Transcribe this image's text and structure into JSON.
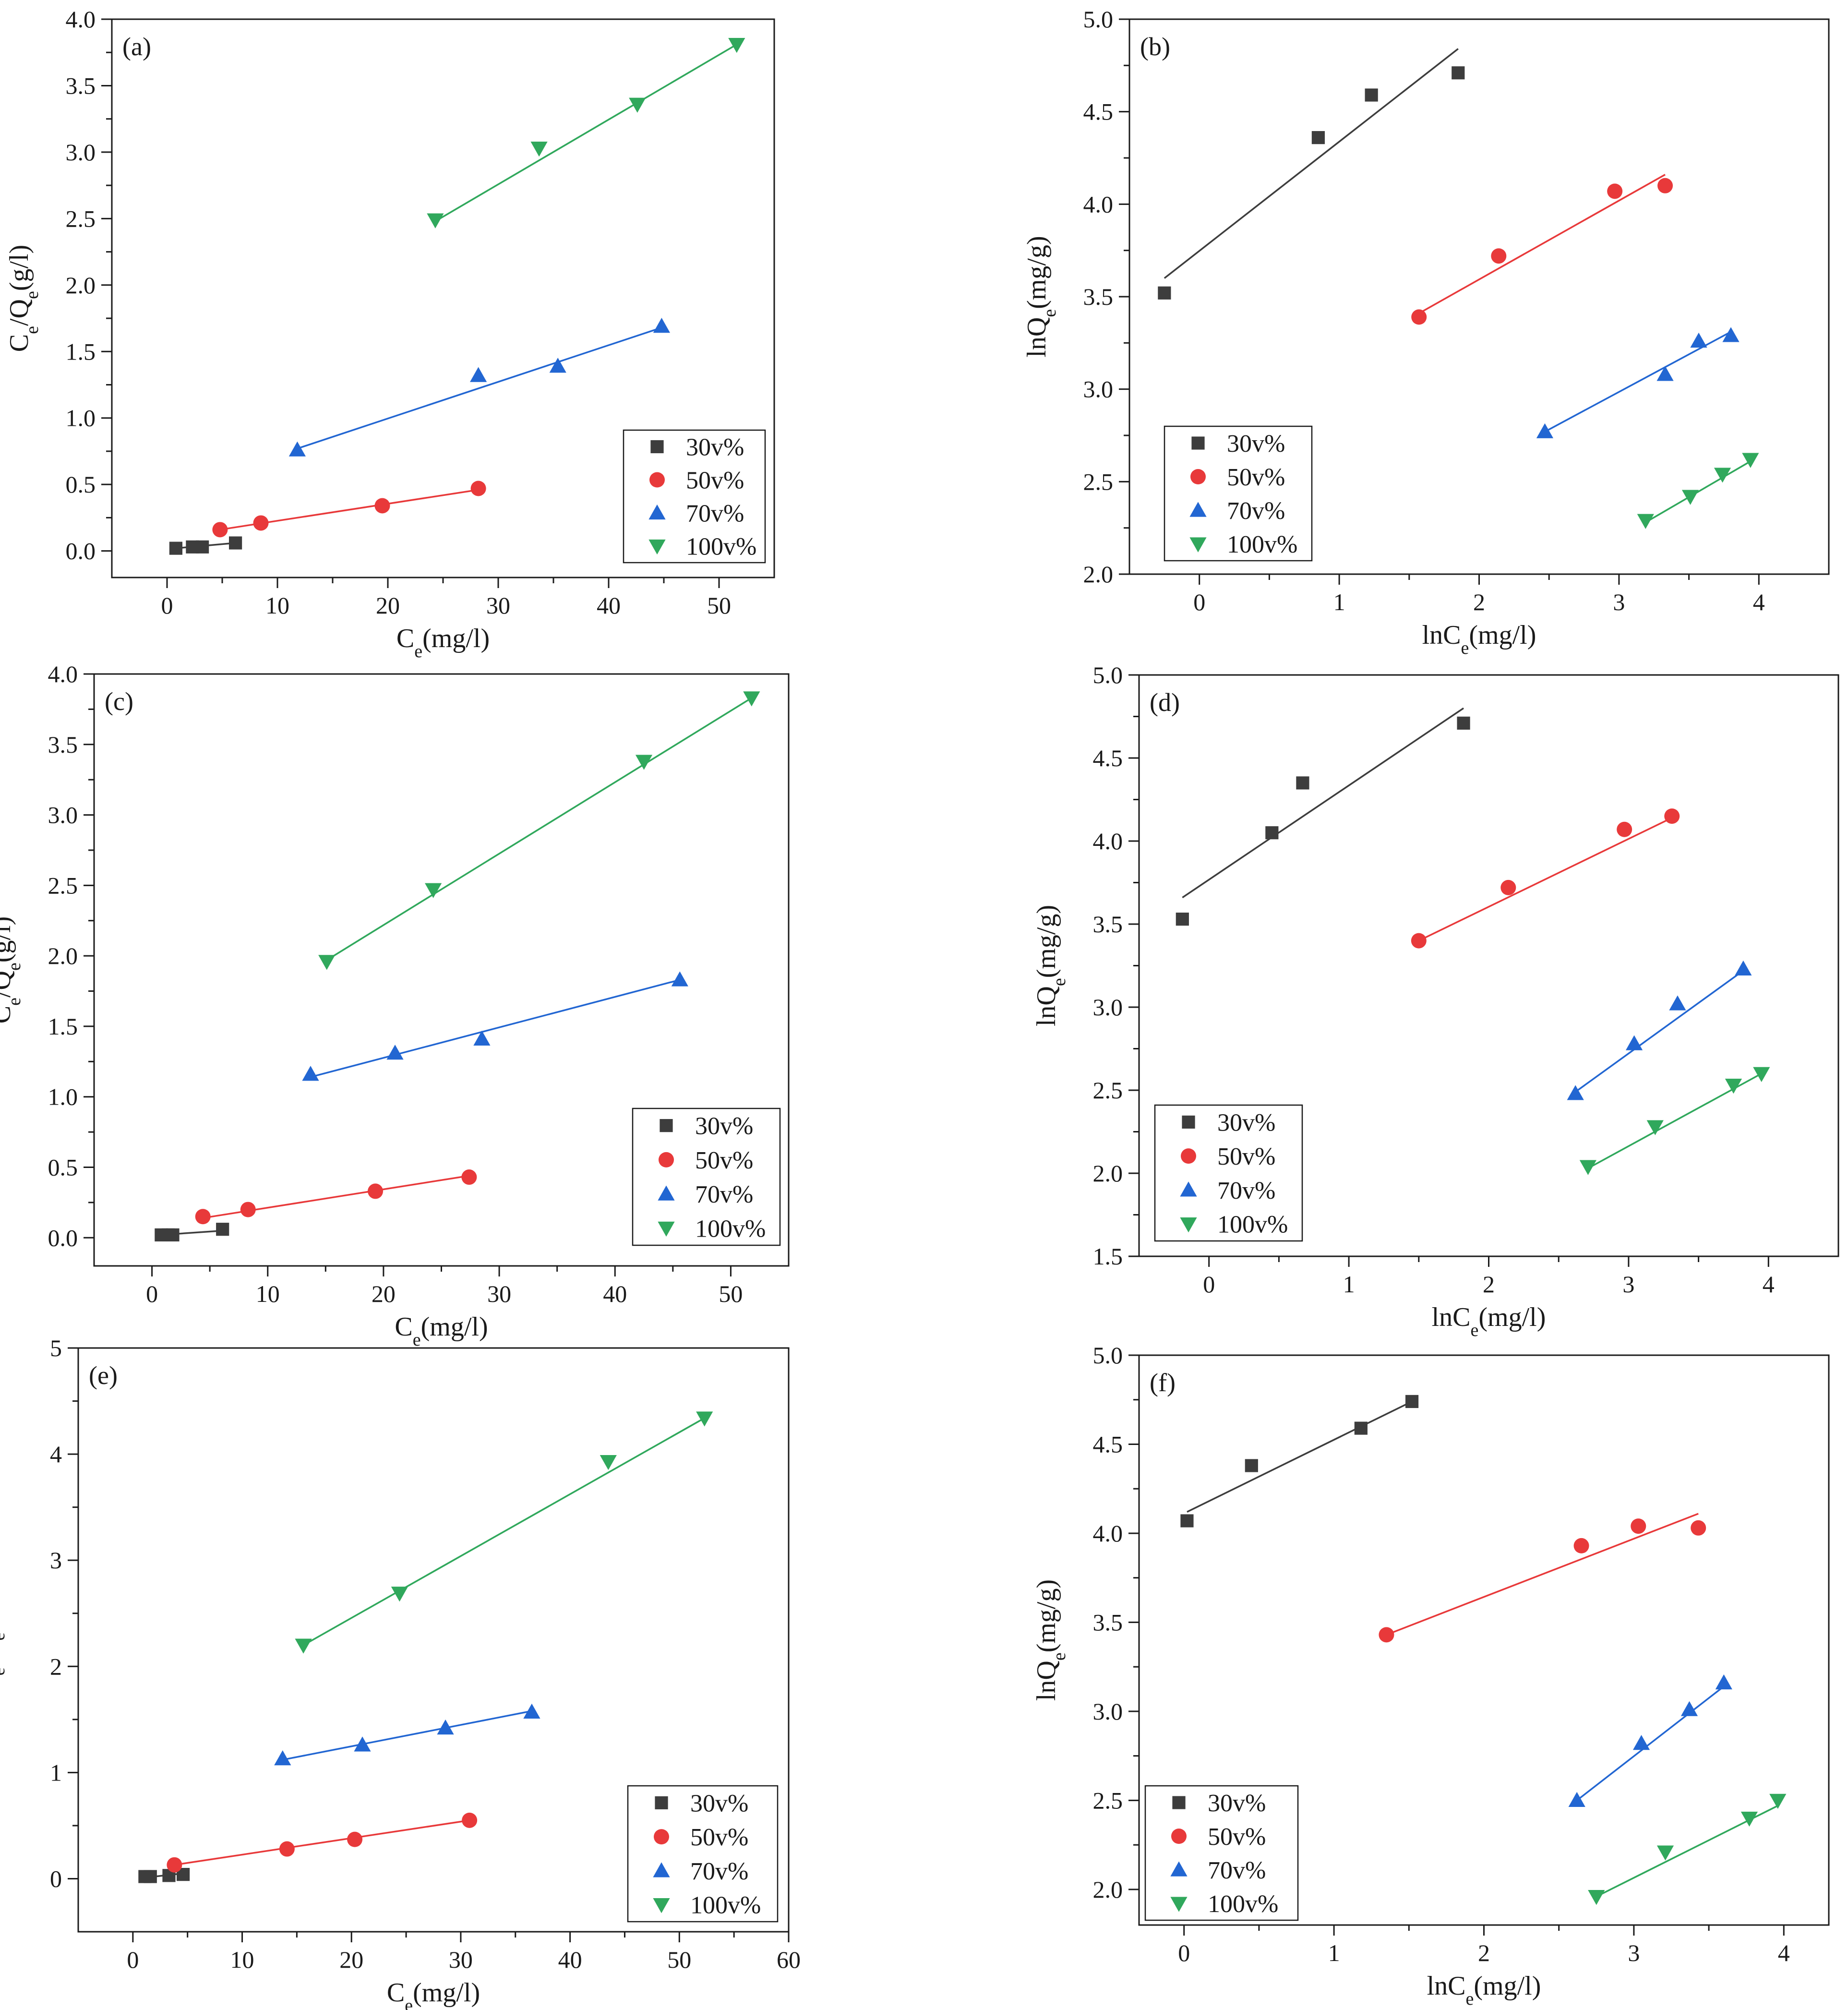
{
  "colors": {
    "30v%": "#3d3d3d",
    "50v%": "#e8393a",
    "70v%": "#2266d2",
    "100v%": "#30a85c"
  },
  "chart_data": [
    {
      "type": "scatter",
      "panel": "(a)",
      "xlabel": "Ce(mg/l)",
      "ylabel": "Ce/Qe(g/l)",
      "xlim": [
        -5,
        55
      ],
      "ylim": [
        -0.2,
        4.0
      ],
      "xticks": [
        0,
        10,
        20,
        30,
        40,
        50
      ],
      "yticks": [
        0.0,
        0.5,
        1.0,
        1.5,
        2.0,
        2.5,
        3.0,
        3.5,
        4.0
      ],
      "xtick_labels": [
        "0",
        "10",
        "20",
        "30",
        "40",
        "50"
      ],
      "ytick_labels": [
        "0.0",
        "0.5",
        "1.0",
        "1.5",
        "2.0",
        "2.5",
        "3.0",
        "3.5",
        "4.0"
      ],
      "legend_position": "bottom-right",
      "series": [
        {
          "name": "30v%",
          "marker": "square",
          "x": [
            0.8,
            2.3,
            3.2,
            6.2
          ],
          "y": [
            0.02,
            0.03,
            0.03,
            0.06
          ],
          "fit": [
            [
              0.8,
              0.02
            ],
            [
              6.2,
              0.06
            ]
          ]
        },
        {
          "name": "50v%",
          "marker": "circle",
          "x": [
            4.8,
            8.5,
            19.5,
            28.2
          ],
          "y": [
            0.16,
            0.21,
            0.34,
            0.47
          ],
          "fit": [
            [
              4.8,
              0.16
            ],
            [
              28.2,
              0.46
            ]
          ]
        },
        {
          "name": "70v%",
          "marker": "triangle-up",
          "x": [
            11.8,
            28.2,
            35.4,
            44.8
          ],
          "y": [
            0.76,
            1.32,
            1.39,
            1.69
          ],
          "fit": [
            [
              11.8,
              0.77
            ],
            [
              44.8,
              1.68
            ]
          ]
        },
        {
          "name": "100v%",
          "marker": "triangle-down",
          "x": [
            24.3,
            33.7,
            42.6,
            51.6
          ],
          "y": [
            2.49,
            3.03,
            3.36,
            3.81
          ],
          "fit": [
            [
              24.3,
              2.48
            ],
            [
              51.6,
              3.81
            ]
          ]
        }
      ]
    },
    {
      "type": "scatter",
      "panel": "(b)",
      "xlabel": "lnCe(mg/l)",
      "ylabel": "lnQe(mg/g)",
      "xlim": [
        -0.5,
        4.5
      ],
      "ylim": [
        2.0,
        5.0
      ],
      "xticks": [
        0,
        1,
        2,
        3,
        4
      ],
      "yticks": [
        2.0,
        2.5,
        3.0,
        3.5,
        4.0,
        4.5,
        5.0
      ],
      "xtick_labels": [
        "0",
        "1",
        "2",
        "3",
        "4"
      ],
      "ytick_labels": [
        "2.0",
        "2.5",
        "3.0",
        "3.5",
        "4.0",
        "4.5",
        "5.0"
      ],
      "legend_position": "bottom-left",
      "series": [
        {
          "name": "30v%",
          "marker": "square",
          "x": [
            -0.25,
            0.85,
            1.23,
            1.85
          ],
          "y": [
            3.52,
            4.36,
            4.59,
            4.71
          ],
          "fit": [
            [
              -0.25,
              3.6
            ],
            [
              1.85,
              4.84
            ]
          ]
        },
        {
          "name": "50v%",
          "marker": "circle",
          "x": [
            1.57,
            2.14,
            2.97,
            3.33
          ],
          "y": [
            3.39,
            3.72,
            4.07,
            4.1
          ],
          "fit": [
            [
              1.57,
              3.41
            ],
            [
              3.33,
              4.16
            ]
          ]
        },
        {
          "name": "70v%",
          "marker": "triangle-up",
          "x": [
            2.47,
            3.33,
            3.57,
            3.8
          ],
          "y": [
            2.77,
            3.08,
            3.26,
            3.29
          ],
          "fit": [
            [
              2.47,
              2.77
            ],
            [
              3.8,
              3.31
            ]
          ]
        },
        {
          "name": "100v%",
          "marker": "triangle-down",
          "x": [
            3.19,
            3.51,
            3.74,
            3.94
          ],
          "y": [
            2.29,
            2.42,
            2.54,
            2.62
          ],
          "fit": [
            [
              3.19,
              2.28
            ],
            [
              3.94,
              2.61
            ]
          ]
        }
      ]
    },
    {
      "type": "scatter",
      "panel": "(c)",
      "xlabel": "Ce(mg/l)",
      "ylabel": "Ce/Qe(g/l)",
      "xlim": [
        -5,
        55
      ],
      "ylim": [
        -0.2,
        4.0
      ],
      "xticks": [
        0,
        10,
        20,
        30,
        40,
        50
      ],
      "yticks": [
        0.0,
        0.5,
        1.0,
        1.5,
        2.0,
        2.5,
        3.0,
        3.5,
        4.0
      ],
      "xtick_labels": [
        "0",
        "10",
        "20",
        "30",
        "40",
        "50"
      ],
      "ytick_labels": [
        "0.0",
        "0.5",
        "1.0",
        "1.5",
        "2.0",
        "2.5",
        "3.0",
        "3.5",
        "4.0"
      ],
      "legend_position": "bottom-right",
      "series": [
        {
          "name": "30v%",
          "marker": "square",
          "x": [
            0.8,
            1.4,
            1.8,
            6.1
          ],
          "y": [
            0.02,
            0.02,
            0.02,
            0.06
          ],
          "fit": [
            [
              0.8,
              0.02
            ],
            [
              6.1,
              0.05
            ]
          ]
        },
        {
          "name": "50v%",
          "marker": "circle",
          "x": [
            4.4,
            8.3,
            19.3,
            27.4
          ],
          "y": [
            0.15,
            0.2,
            0.33,
            0.43
          ],
          "fit": [
            [
              4.4,
              0.14
            ],
            [
              27.4,
              0.44
            ]
          ]
        },
        {
          "name": "70v%",
          "marker": "triangle-up",
          "x": [
            13.7,
            21.0,
            28.5,
            45.6
          ],
          "y": [
            1.16,
            1.31,
            1.41,
            1.83
          ],
          "fit": [
            [
              13.7,
              1.14
            ],
            [
              45.6,
              1.83
            ]
          ]
        },
        {
          "name": "100v%",
          "marker": "triangle-down",
          "x": [
            15.1,
            24.3,
            42.5,
            51.8
          ],
          "y": [
            1.96,
            2.47,
            3.38,
            3.83
          ],
          "fit": [
            [
              15.1,
              1.97
            ],
            [
              51.8,
              3.83
            ]
          ]
        }
      ]
    },
    {
      "type": "scatter",
      "panel": "(d)",
      "xlabel": "lnCe(mg/l)",
      "ylabel": "lnQe(mg/g)",
      "xlim": [
        -0.5,
        4.5
      ],
      "ylim": [
        1.5,
        5.0
      ],
      "xticks": [
        0,
        1,
        2,
        3,
        4
      ],
      "yticks": [
        1.5,
        2.0,
        2.5,
        3.0,
        3.5,
        4.0,
        4.5,
        5.0
      ],
      "xtick_labels": [
        "0",
        "1",
        "2",
        "3",
        "4"
      ],
      "ytick_labels": [
        "1.5",
        "2.0",
        "2.5",
        "3.0",
        "3.5",
        "4.0",
        "4.5",
        "5.0"
      ],
      "legend_position": "bottom-left",
      "series": [
        {
          "name": "30v%",
          "marker": "square",
          "x": [
            -0.19,
            0.45,
            0.67,
            1.82
          ],
          "y": [
            3.53,
            4.05,
            4.35,
            4.71
          ],
          "fit": [
            [
              -0.19,
              3.66
            ],
            [
              1.82,
              4.8
            ]
          ]
        },
        {
          "name": "50v%",
          "marker": "circle",
          "x": [
            1.5,
            2.14,
            2.97,
            3.31
          ],
          "y": [
            3.4,
            3.72,
            4.07,
            4.15
          ],
          "fit": [
            [
              1.5,
              3.4
            ],
            [
              3.31,
              4.14
            ]
          ]
        },
        {
          "name": "70v%",
          "marker": "triangle-up",
          "x": [
            2.62,
            3.04,
            3.35,
            3.82
          ],
          "y": [
            2.48,
            2.78,
            3.02,
            3.23
          ],
          "fit": [
            [
              2.62,
              2.49
            ],
            [
              3.82,
              3.22
            ]
          ]
        },
        {
          "name": "100v%",
          "marker": "triangle-down",
          "x": [
            2.71,
            3.19,
            3.75,
            3.95
          ],
          "y": [
            2.04,
            2.28,
            2.53,
            2.6
          ],
          "fit": [
            [
              2.71,
              2.03
            ],
            [
              3.95,
              2.6
            ]
          ]
        }
      ]
    },
    {
      "type": "scatter",
      "panel": "(e)",
      "xlabel": "Ce(mg/l)",
      "ylabel": "Ce/Qe(g/l)",
      "xlim": [
        -5,
        60
      ],
      "ylim": [
        -0.5,
        5
      ],
      "xticks": [
        0,
        10,
        20,
        30,
        40,
        50,
        60
      ],
      "yticks": [
        0,
        1,
        2,
        3,
        4,
        5
      ],
      "xtick_labels": [
        "0",
        "10",
        "20",
        "30",
        "40",
        "50",
        "60"
      ],
      "ytick_labels": [
        "0",
        "1",
        "2",
        "3",
        "4",
        "5"
      ],
      "legend_position": "bottom-right",
      "series": [
        {
          "name": "30v%",
          "marker": "square",
          "x": [
            1.1,
            1.6,
            3.3,
            4.6
          ],
          "y": [
            0.02,
            0.02,
            0.03,
            0.04
          ],
          "fit": [
            [
              1.1,
              0.01
            ],
            [
              4.6,
              0.05
            ]
          ]
        },
        {
          "name": "50v%",
          "marker": "circle",
          "x": [
            3.8,
            14.1,
            20.3,
            30.8
          ],
          "y": [
            0.13,
            0.28,
            0.37,
            0.55
          ],
          "fit": [
            [
              3.8,
              0.13
            ],
            [
              30.8,
              0.55
            ]
          ]
        },
        {
          "name": "70v%",
          "marker": "triangle-up",
          "x": [
            13.7,
            21.0,
            28.6,
            36.5
          ],
          "y": [
            1.13,
            1.26,
            1.42,
            1.57
          ],
          "fit": [
            [
              13.7,
              1.12
            ],
            [
              36.5,
              1.58
            ]
          ]
        },
        {
          "name": "100v%",
          "marker": "triangle-down",
          "x": [
            15.6,
            24.4,
            43.5,
            52.3
          ],
          "y": [
            2.2,
            2.69,
            3.93,
            4.34
          ],
          "fit": [
            [
              15.6,
              2.2
            ],
            [
              52.3,
              4.34
            ]
          ]
        }
      ]
    },
    {
      "type": "scatter",
      "panel": "(f)",
      "xlabel": "lnCe(mg/l)",
      "ylabel": "lnQe(mg/g)",
      "xlim": [
        -0.3,
        4.3
      ],
      "ylim": [
        1.8,
        5.0
      ],
      "xticks": [
        0,
        1,
        2,
        3,
        4
      ],
      "yticks": [
        2.0,
        2.5,
        3.0,
        3.5,
        4.0,
        4.5,
        5.0
      ],
      "xtick_labels": [
        "0",
        "1",
        "2",
        "3",
        "4"
      ],
      "ytick_labels": [
        "2.0",
        "2.5",
        "3.0",
        "3.5",
        "4.0",
        "4.5",
        "5.0"
      ],
      "legend_position": "bottom-left",
      "series": [
        {
          "name": "30v%",
          "marker": "square",
          "x": [
            0.02,
            0.45,
            1.18,
            1.52
          ],
          "y": [
            4.07,
            4.38,
            4.59,
            4.74
          ],
          "fit": [
            [
              0.02,
              4.12
            ],
            [
              1.52,
              4.74
            ]
          ]
        },
        {
          "name": "50v%",
          "marker": "circle",
          "x": [
            1.35,
            2.65,
            3.03,
            3.43
          ],
          "y": [
            3.43,
            3.93,
            4.04,
            4.03
          ],
          "fit": [
            [
              1.35,
              3.43
            ],
            [
              3.43,
              4.11
            ]
          ]
        },
        {
          "name": "70v%",
          "marker": "triangle-up",
          "x": [
            2.62,
            3.05,
            3.37,
            3.6
          ],
          "y": [
            2.5,
            2.82,
            3.01,
            3.16
          ],
          "fit": [
            [
              2.62,
              2.5
            ],
            [
              3.6,
              3.14
            ]
          ]
        },
        {
          "name": "100v%",
          "marker": "triangle-down",
          "x": [
            2.75,
            3.21,
            3.77,
            3.96
          ],
          "y": [
            1.96,
            2.21,
            2.4,
            2.5
          ],
          "fit": [
            [
              2.75,
              1.96
            ],
            [
              3.96,
              2.47
            ]
          ]
        }
      ]
    }
  ]
}
